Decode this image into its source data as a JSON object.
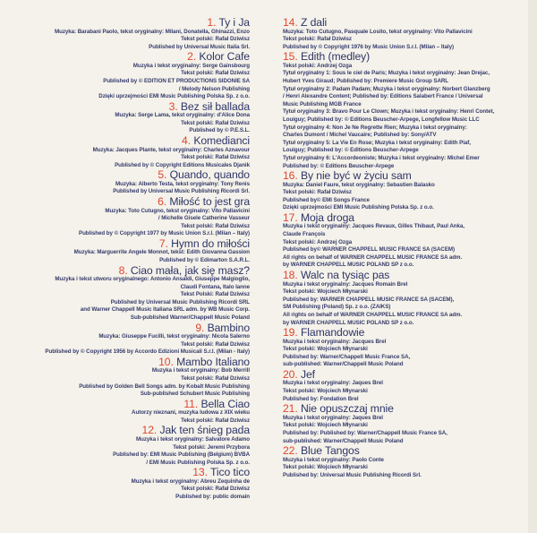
{
  "colors": {
    "background": "#f4f2ea",
    "text": "#2e3468",
    "number": "#e0452f"
  },
  "left_tracks": [
    {
      "num": "1.",
      "title": "Ty i Ja",
      "lines": [
        "Muzyka: Barabani Paolo, tekst oryginalny: Milani, Donatella, Ghinazzi, Enzo",
        "Tekst polski: Rafał Dziwisz",
        "Published by Universal Music Italia Srl."
      ]
    },
    {
      "num": "2.",
      "title": "Kolor Cafe",
      "lines": [
        "Muzyka i tekst oryginalny: Serge Gainsbourg",
        "Tekst polski: Rafał Dziwisz",
        "Published by © EDITION ET PRODUCTIONS SIDONIE SA",
        "/ Melody Nelson Publishing",
        "Dzięki uprzejmości EMI Music Publishing Polska Sp. z o.o."
      ]
    },
    {
      "num": "3.",
      "title": "Bez sił ballada",
      "lines": [
        "Muzyka: Serge Lama, tekst oryginalny: d'Alice Dona",
        "Tekst polski: Rafał Dziwisz",
        "Published by © P.E.S.L."
      ]
    },
    {
      "num": "4.",
      "title": "Komedianci",
      "lines": [
        "Muzyka: Jacques Plante, tekst oryginalny: Charles Aznavour",
        "Tekst polski: Rafał Dziwisz",
        "Published by © Copyright Editions Musicales Djanik"
      ]
    },
    {
      "num": "5.",
      "title": "Quando, quando",
      "lines": [
        "Muzyka: Alberto Testa, tekst oryginalny: Tony Renis",
        "Published by Universal Music Publishing Ricordi Srl."
      ]
    },
    {
      "num": "6.",
      "title": "Miłość to jest gra",
      "lines": [
        "Muzyka: Toto Cutugno, tekst oryginalny: Vito Pallavicini",
        "/ Michelle Gisele Catherine Vasseur",
        "Tekst polski: Rafał Dziwisz",
        "Published by © Copyright 1977 by Music Union S.r.l. (Milan – Italy)"
      ]
    },
    {
      "num": "7.",
      "title": "Hymn do miłości",
      "lines": [
        "Muzyka: Marguerrite Angele Monnot, tekst: Edith Giovanna Gassion",
        "Published by © Edimarton S.A.R.L."
      ]
    },
    {
      "num": "8.",
      "title": "Ciao mała, jak się masz?",
      "lines": [
        "Muzyka i tekst utworu oryginalnego: Antonio Ansaldi, Giuseppe Malgioglio,",
        "Claudi Fontana, Italo Ianne",
        "Tekst Polski: Rafał Dziwisz",
        "Published by Universal Music Publishing Ricordi SRL",
        "and Warner Chappell Music Italiana SRL adm. by WB Music Corp.",
        "Sub-published Warner/Chappell Music Poland"
      ]
    },
    {
      "num": "9.",
      "title": "Bambino",
      "lines": [
        "Muzyka: Giuseppe Fucilli, tekst oryginalny: Nicola Salerno",
        "Tekst polski: Rafał Dziwisz",
        "Published by © Copyright 1956 by Accordo Edizioni Musicali S.r.l. (Milan - Italy)"
      ]
    },
    {
      "num": "10.",
      "title": "Mambo Italiano",
      "lines": [
        "Muzyka i tekst oryginalny: Bob Merrill",
        "Tekst polski: Rafał Dziwisz",
        "Published by Golden Bell Songs adm. by Kobalt Music Publishing",
        "Sub-published Schubert Music Publishing"
      ]
    },
    {
      "num": "11.",
      "title": "Bella Ciao",
      "lines": [
        "Autorzy nieznani, muzyka ludowa z XIX wieku",
        "Tekst polski: Rafał Dziwisz"
      ]
    },
    {
      "num": "12.",
      "title": "Jak ten śnieg pada",
      "lines": [
        "Muzyka i tekst oryginalny: Salvatore Adamo",
        "Tekst polski: Jeremi Przybora",
        "Published by: EMI Music Publishing (Belgium) BVBA",
        "/ EMI Music Publishing Polska Sp. z o.o."
      ]
    },
    {
      "num": "13.",
      "title": "Tico tico",
      "lines": [
        "Muzyka i tekst oryginalny: Abreu Zequinha de",
        "Tekst polski: Rafał Dziwisz",
        "Published by: public domain"
      ]
    }
  ],
  "right_tracks": [
    {
      "num": "14.",
      "title": "Z dali",
      "lines": [
        "Muzyka: Toto Cutugno, Pasquale Losito, tekst oryginalny: Vito Pallavicini",
        "Tekst polski: Rafał Dziwisz",
        "Published by © Copyright 1976 by Music Union S.r.l. (Milan – Italy)"
      ]
    },
    {
      "num": "15.",
      "title": "Edith (medley)",
      "lines": [
        "Tekst polski: Andrzej Ozga",
        "Tytuł oryginalny 1: Sous le ciel de Paris; Muzyka i tekst oryginalny: Jean Drejac,",
        "Hubert Yves Giraud; Published by: Premiere Music Group SARL",
        "Tytuł oryginalny 2: Padam Padam; Muzyka i tekst oryginalny: Norbert Glanzberg",
        "/ Henri Alexandre Content; Published by: Editions Salabert France / Universal",
        "Music Publishing MGB France",
        "Tytuł oryginalny 3: Bravo Pour Le Clown; Muzyka i tekst oryginalny: Henri Contet,",
        "Louiguy; Published by: © Editions Beuscher-Arpege, Longfellow Music LLC",
        "Tytuł oryginalny 4: Non Je Ne Regrette Rien; Muzyka i tekst oryginalny:",
        "Charles Dumont / Michel Vaucaire; Published by: Sony/ATV",
        "Tytuł oryginalny 5: La Vie En Rose; Muzyka i tekst oryginalny: Edith Piaf,",
        "Louiguy; Published by: © Editions Beuscher-Arpege",
        "Tytuł oryginalny 6: L'Accordeoniste; Muzyka i tekst oryginalny: Michel Emer",
        "Published by: © Editions Beuscher-Arpege"
      ]
    },
    {
      "num": "16.",
      "title": "By nie być w życiu sam",
      "lines": [
        "Muzyka: Daniel Faure, tekst oryginalny: Sebastien Balasko",
        "Tekst polski: Rafał Dziwisz",
        "Published by© EMI Songs France",
        "Dzięki uprzejmości EMI Music Publishing Polska Sp. z o.o."
      ]
    },
    {
      "num": "17.",
      "title": "Moja droga",
      "lines": [
        "Muzyka i tekst oryginalny: Jacques Revaux, Gilles Thibaut, Paul Anka,",
        "Claude François",
        "Tekst polski: Andrzej Ozga",
        "Published by© WARNER CHAPPELL MUSIC FRANCE SA (SACEM)",
        "All rights on behalf of WARNER CHAPPELL MUSIC FRANCE SA adm.",
        "by WARNER CHAPPELL MUSIC POLAND SP z o.o."
      ]
    },
    {
      "num": "18.",
      "title": "Walc na tysiąc pas",
      "lines": [
        "Muzyka i tekst oryginalny: Jacques Romain Brel",
        "Tekst polski: Wojciech Młynarski",
        "Published by: WARNER CHAPPELL MUSIC FRANCE SA (SACEM),",
        "SM Publishing (Poland) Sp. z o.o. (ZAIKS)",
        "All rights on behalf of WARNER CHAPPELL MUSIC FRANCE SA adm.",
        "by WARNER CHAPPELL MUSIC POLAND SP z o.o."
      ]
    },
    {
      "num": "19.",
      "title": "Flamandowie",
      "lines": [
        "Muzyka i tekst oryginalny: Jacques Brel",
        "Tekst polski: Wojciech Młynarski",
        "Published by: Warner/Chappell Music France SA,",
        "sub-published: Warner/Chappell Music Poland"
      ]
    },
    {
      "num": "20.",
      "title": "Jef",
      "lines": [
        "Muzyka i tekst oryginalny: Jaques Brel",
        "Tekst polski: Wojciech Młynarski",
        "Published by: Fondation Brel"
      ]
    },
    {
      "num": "21.",
      "title": "Nie opuszczaj mnie",
      "lines": [
        "Muzyka i tekst oryginalny: Jaques Brel",
        "Tekst polski: Wojciech Młynarski",
        "Published by: Published by: Warner/Chappell Music France SA,",
        "sub-published: Warner/Chappell Music Poland"
      ]
    },
    {
      "num": "22.",
      "title": "Blue Tangos",
      "lines": [
        "Muzyka i tekst oryginalny: Paolo Conte",
        "Tekst polski: Wojciech Młynarski",
        "Published by: Universal Music Publishing Ricordi Srl."
      ]
    }
  ]
}
